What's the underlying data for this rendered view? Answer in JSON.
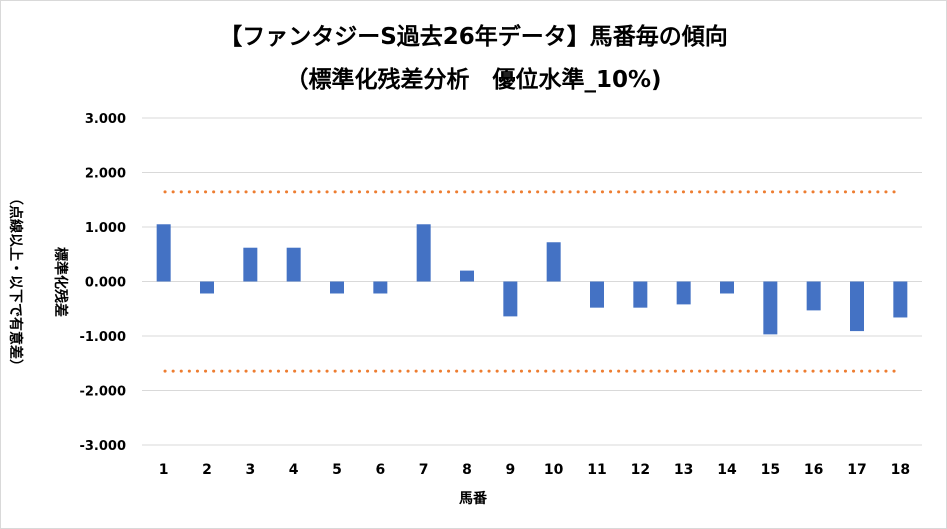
{
  "chart_data": {
    "type": "bar",
    "title_line1": "【ファンタジーS過去26年データ】馬番毎の傾向",
    "title_line2": "（標準化残差分析　優位水準_10%)",
    "xlabel": "馬番",
    "ylabel_line1": "標準化残差",
    "ylabel_line2": "（点線以上・以下で有意差）",
    "categories": [
      "1",
      "2",
      "3",
      "4",
      "5",
      "6",
      "7",
      "8",
      "9",
      "10",
      "11",
      "12",
      "13",
      "14",
      "15",
      "16",
      "17",
      "18"
    ],
    "values": [
      1.05,
      -0.22,
      0.62,
      0.62,
      -0.22,
      -0.22,
      1.05,
      0.2,
      -0.64,
      0.72,
      -0.48,
      -0.48,
      -0.42,
      -0.22,
      -0.97,
      -0.53,
      -0.91,
      -0.66
    ],
    "ylim": [
      -3,
      3
    ],
    "yticks": [
      "3.000",
      "2.000",
      "1.000",
      "0.000",
      "-1.000",
      "-2.000",
      "-3.000"
    ],
    "threshold_upper": 1.645,
    "threshold_lower": -1.645,
    "bar_color": "#4472c4",
    "threshold_color": "#ed7d31",
    "grid": true
  }
}
